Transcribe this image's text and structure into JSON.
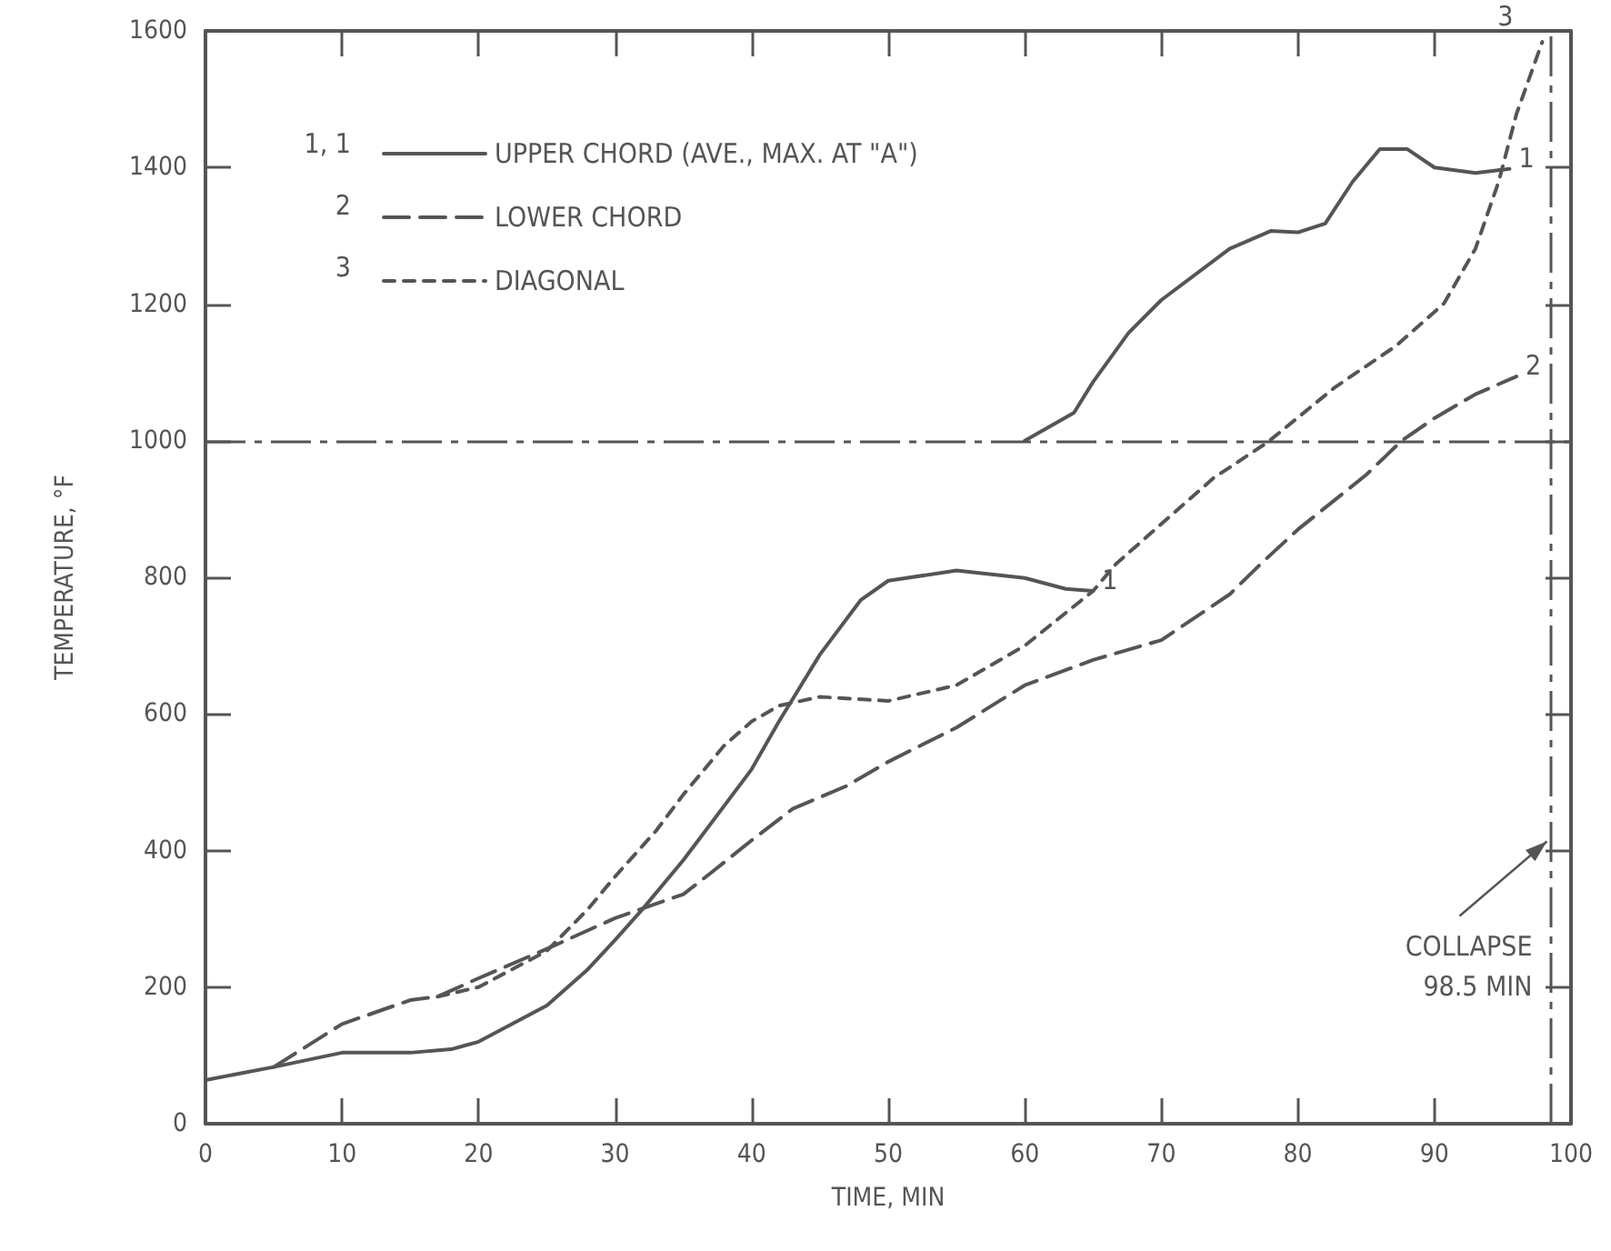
{
  "chart_data": {
    "type": "line",
    "xlabel": "TIME, MIN",
    "ylabel": "TEMPERATURE, °F",
    "xlim": [
      0,
      100
    ],
    "xticks": [
      0,
      10,
      20,
      30,
      40,
      50,
      60,
      70,
      80,
      90,
      100
    ],
    "ylim": [
      0,
      1600
    ],
    "yticks": [
      0,
      200,
      400,
      600,
      800,
      1000,
      1200,
      1400,
      1600
    ],
    "grid": false,
    "legend": "top left",
    "marker": "none",
    "series": [
      {
        "name": "UPPER CHORD (AVE., MAX. AT \"A\")",
        "color": "#555555",
        "line_style": "solid",
        "x": [
          0,
          5,
          10,
          15,
          18,
          20,
          25,
          28,
          30,
          32,
          35,
          40,
          42,
          45,
          48,
          50,
          55,
          60,
          63,
          65,
          null,
          60,
          63.6,
          65,
          67.6,
          70,
          75,
          78,
          80,
          82,
          84,
          86,
          88,
          90,
          93,
          95.5
        ],
        "values": [
          64,
          83,
          104,
          104,
          109,
          120,
          173,
          226,
          269,
          314,
          386,
          519,
          589,
          687,
          767,
          795,
          810,
          799,
          783,
          780,
          null,
          1000,
          1041,
          1086,
          1158,
          1206,
          1281,
          1307,
          1305,
          1318,
          1379,
          1427,
          1427,
          1400,
          1392,
          1398
        ]
      },
      {
        "name": "LOWER CHORD",
        "color": "#555555",
        "line_style": "dashed",
        "x": [
          5,
          10,
          15,
          17,
          20,
          25,
          30,
          35,
          37,
          40,
          43,
          47,
          50,
          55,
          60,
          65,
          70,
          75,
          77.3,
          80,
          85,
          87.6,
          90,
          93,
          96
        ],
        "values": [
          83,
          146,
          181,
          186,
          213,
          256,
          301,
          336,
          367,
          415,
          461,
          495,
          530,
          580,
          642,
          679,
          708,
          775,
          820,
          870,
          950,
          1000,
          1033,
          1068,
          1094
        ]
      },
      {
        "name": "DIAGONAL",
        "color": "#555555",
        "line_style": "dotted",
        "x": [
          17,
          20,
          25,
          28,
          30,
          33,
          35,
          38,
          40,
          42,
          45,
          50,
          55,
          60,
          65,
          66.7,
          73.8,
          77.8,
          82.7,
          87.2,
          90.7,
          93,
          94.7,
          96,
          97.9
        ],
        "values": [
          186,
          200,
          253,
          314,
          362,
          429,
          482,
          554,
          589,
          612,
          625,
          619,
          642,
          700,
          780,
          820,
          945,
          998,
          1078,
          1139,
          1201,
          1281,
          1379,
          1478,
          1584
        ]
      }
    ],
    "ref_lines": [
      {
        "axis": "y",
        "value": 1000,
        "line_style": "dashed",
        "color": "#555555"
      },
      {
        "axis": "x",
        "value": 98.5,
        "line_style": "dashed",
        "color": "#555555",
        "label": "COLLAPSE\n98.5 MIN"
      }
    ],
    "annotations": [
      "1, 1",
      "2",
      "3",
      {
        "text": "1",
        "x": 65,
        "y": 780
      },
      {
        "text": "1",
        "x": 95.5,
        "y": 1398
      },
      {
        "text": "2",
        "x": 96,
        "y": 1094
      },
      {
        "text": "3",
        "x": 97.9,
        "y": 1584
      }
    ]
  }
}
